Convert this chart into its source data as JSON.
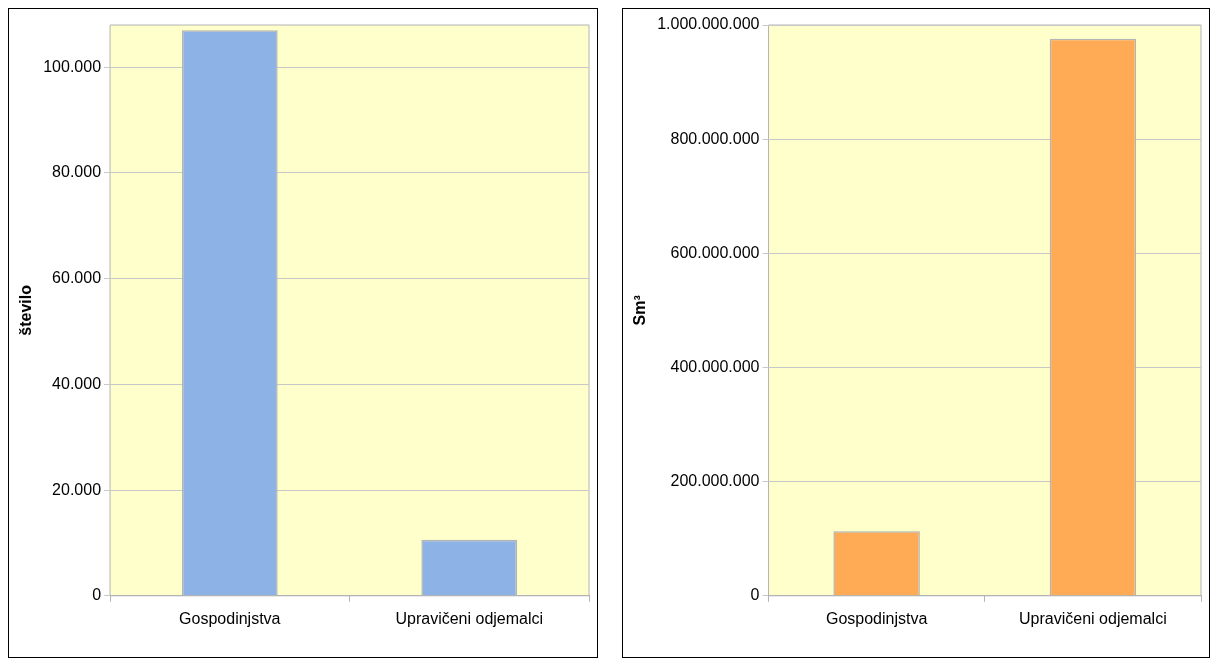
{
  "chart_data": [
    {
      "type": "bar",
      "categories": [
        "Gospodinjstva",
        "Upravičeni odjemalci"
      ],
      "ylabel": "število",
      "color": "#8db2e6",
      "values": [
        107000,
        10600
      ],
      "ylim": [
        0,
        108000
      ],
      "yticks": [
        {
          "value": 0,
          "label": "0"
        },
        {
          "value": 20000,
          "label": "20.000"
        },
        {
          "value": 40000,
          "label": "40.000"
        },
        {
          "value": 60000,
          "label": "60.000"
        },
        {
          "value": 80000,
          "label": "80.000"
        },
        {
          "value": 100000,
          "label": "100.000"
        }
      ],
      "grid": "y",
      "legend": false
    },
    {
      "type": "bar",
      "categories": [
        "Gospodinjstva",
        "Upravičeni odjemalci"
      ],
      "ylabel": "Sm³",
      "color": "#ffaa55",
      "values": [
        113000000,
        976000000
      ],
      "ylim": [
        0,
        1000000000
      ],
      "yticks": [
        {
          "value": 0,
          "label": "0"
        },
        {
          "value": 200000000,
          "label": "200.000.000"
        },
        {
          "value": 400000000,
          "label": "400.000.000"
        },
        {
          "value": 600000000,
          "label": "600.000.000"
        },
        {
          "value": 800000000,
          "label": "800.000.000"
        },
        {
          "value": 1000000000,
          "label": "1.000.000.000"
        }
      ],
      "grid": "y",
      "legend": false
    }
  ]
}
